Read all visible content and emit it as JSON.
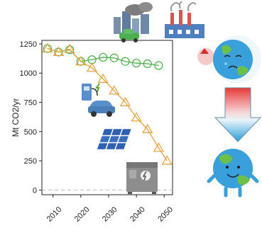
{
  "chart_data": {
    "type": "line",
    "ylabel": "Mt CO2/yr",
    "xlabel": "",
    "title": "",
    "xlim": [
      2006,
      2053
    ],
    "ylim": [
      -40,
      1280
    ],
    "x_ticks": [
      2010,
      2020,
      2030,
      2040,
      2050
    ],
    "y_ticks": [
      0,
      250,
      500,
      750,
      1000,
      1250
    ],
    "x_tick_labels": [
      "2010",
      "2020",
      "2030",
      "2040",
      "2050"
    ],
    "y_tick_labels": [
      "0",
      "250",
      "500",
      "750",
      "1000",
      "1250"
    ],
    "zero_line": "dashed",
    "grid": false,
    "legend": "none",
    "series": [
      {
        "marker": "circle",
        "color": "#4cae4c",
        "x": [
          2008,
          2012,
          2016,
          2020,
          2024,
          2028,
          2032,
          2036,
          2040,
          2044,
          2048
        ],
        "y": [
          1210,
          1180,
          1200,
          1100,
          1115,
          1135,
          1130,
          1100,
          1085,
          1080,
          1065
        ]
      },
      {
        "marker": "triangle",
        "color": "#e3a33a",
        "x": [
          2008,
          2012,
          2016,
          2020,
          2024,
          2028,
          2032,
          2036,
          2040,
          2044,
          2048,
          2051
        ],
        "y": [
          1210,
          1180,
          1205,
          1100,
          1045,
          950,
          850,
          750,
          620,
          520,
          360,
          250
        ]
      }
    ]
  },
  "illustrations": [
    "cityscape-with-car",
    "factory-with-smoke",
    "sad-earth-icon",
    "ev-charger-car",
    "solar-panels",
    "battery-storage",
    "gradient-arrow-down",
    "happy-earth-icon"
  ]
}
